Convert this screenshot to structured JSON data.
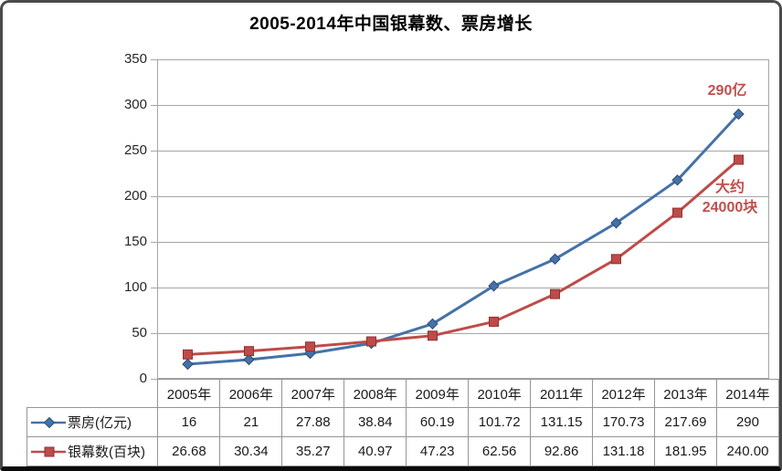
{
  "chart_data": {
    "type": "line",
    "title": "2005-2014年中国银幕数、票房增长",
    "categories": [
      "2005年",
      "2006年",
      "2007年",
      "2008年",
      "2009年",
      "2010年",
      "2011年",
      "2012年",
      "2013年",
      "2014年"
    ],
    "series": [
      {
        "name": "票房(亿元)",
        "marker": "diamond",
        "color": "#4472a8",
        "edge": "#2c4d79",
        "values": [
          "16",
          "21",
          "27.88",
          "38.84",
          "60.19",
          "101.72",
          "131.15",
          "170.73",
          "217.69",
          "290"
        ]
      },
      {
        "name": "银幕数(百块)",
        "marker": "square",
        "color": "#be4b48",
        "edge": "#8f3230",
        "values": [
          "26.68",
          "30.34",
          "35.27",
          "40.97",
          "47.23",
          "62.56",
          "92.86",
          "131.18",
          "181.95",
          "240.00"
        ]
      }
    ],
    "ylim": [
      0,
      350
    ],
    "y_step": 50,
    "grid": true,
    "grid_color": "#a6a6a6",
    "legend_position": "data-table-left",
    "annotation_color": "#c0504d",
    "annotations": [
      {
        "lines": [
          "290亿"
        ]
      },
      {
        "lines": [
          "大约",
          "24000块"
        ]
      }
    ]
  }
}
